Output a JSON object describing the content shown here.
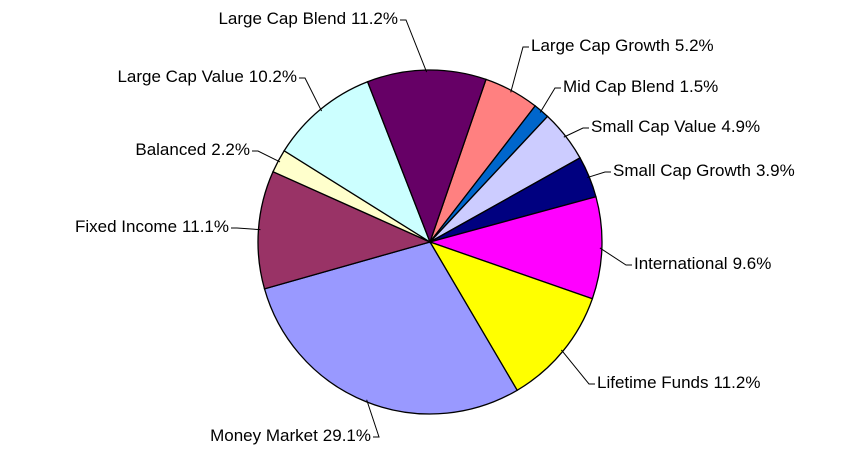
{
  "chart_data": {
    "type": "pie",
    "categories": [
      "Large Cap Growth",
      "Mid Cap Blend",
      "Small Cap Value",
      "Small Cap Growth",
      "International",
      "Lifetime Funds",
      "Money Market",
      "Fixed Income",
      "Balanced",
      "Large Cap Value",
      "Large Cap Blend"
    ],
    "values": [
      5.2,
      1.5,
      4.9,
      3.9,
      9.6,
      11.2,
      29.1,
      11.1,
      2.2,
      10.2,
      11.2
    ],
    "value_labels": [
      "5.2%",
      "1.5%",
      "4.9%",
      "3.9%",
      "9.6%",
      "11.2%",
      "29.1%",
      "11.1%",
      "2.2%",
      "10.2%",
      "11.2%"
    ],
    "colors": [
      "#ff8080",
      "#0066cc",
      "#ccccff",
      "#000080",
      "#ff00ff",
      "#ffff00",
      "#9999ff",
      "#993366",
      "#ffffcc",
      "#ccffff",
      "#660066"
    ]
  }
}
